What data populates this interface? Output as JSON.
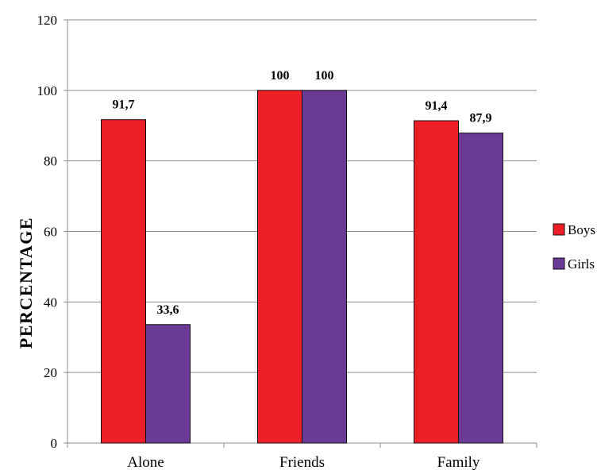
{
  "chart_data": {
    "type": "bar",
    "categories": [
      "Alone",
      "Friends",
      "Family"
    ],
    "series": [
      {
        "name": "Boys",
        "values": [
          91.7,
          100,
          91.4
        ],
        "labels": [
          "91,7",
          "100",
          "91,4"
        ],
        "color": "#ee1f26"
      },
      {
        "name": "Girls",
        "values": [
          33.6,
          100,
          87.9
        ],
        "labels": [
          "33,6",
          "100",
          "87,9"
        ],
        "color": "#6a3a96"
      }
    ],
    "ylabel": "PERCENTAGE",
    "ylim": [
      0,
      120
    ],
    "yticks": [
      0,
      20,
      40,
      60,
      80,
      100,
      120
    ],
    "grid": true,
    "legend_position": "right"
  }
}
